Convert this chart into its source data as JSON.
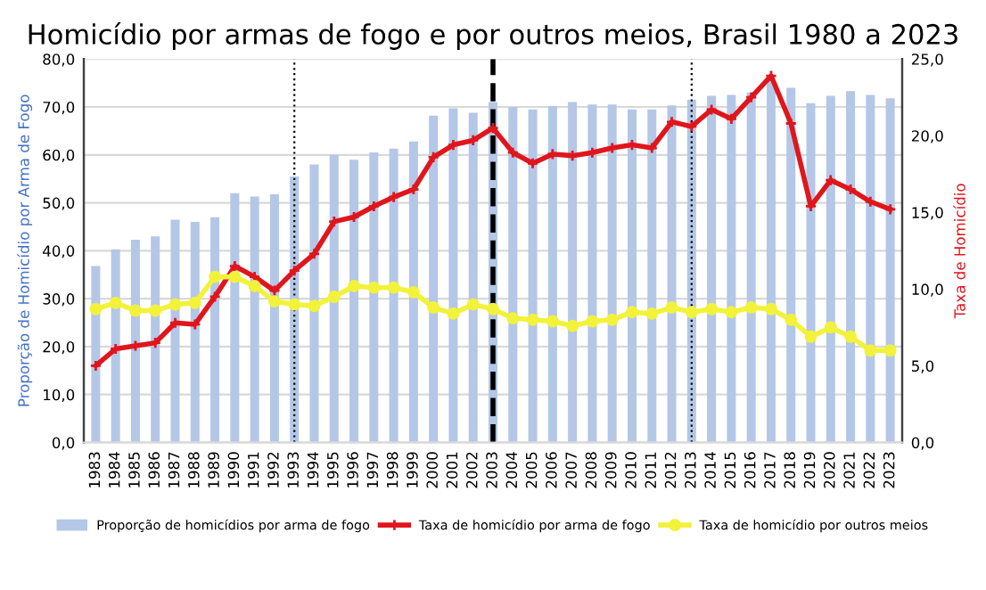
{
  "chart_data": {
    "type": "bar",
    "title": "Homicídio por armas de fogo e por outros meios, Brasil 1980 a 2023",
    "ylabel": "Proporção de Homicídio por Arma de Fogo",
    "y2label": "Taxa de Homicídio",
    "categories": [
      "1983",
      "1984",
      "1985",
      "1986",
      "1987",
      "1988",
      "1989",
      "1990",
      "1991",
      "1992",
      "1993",
      "1994",
      "1995",
      "1996",
      "1997",
      "1998",
      "1999",
      "2000",
      "2001",
      "2002",
      "2003",
      "2004",
      "2005",
      "2006",
      "2007",
      "2008",
      "2009",
      "2010",
      "2011",
      "2012",
      "2013",
      "2014",
      "2015",
      "2016",
      "2017",
      "2018",
      "2019",
      "2020",
      "2021",
      "2022",
      "2023"
    ],
    "series": [
      {
        "name": "Proporção de homicídios por arma de fogo",
        "color": "#b4c7e7",
        "values": [
          36.8,
          40.3,
          42.3,
          43.0,
          46.5,
          46.0,
          47.0,
          52.0,
          51.3,
          51.8,
          55.5,
          58.0,
          60.0,
          59.0,
          60.5,
          61.3,
          62.8,
          68.2,
          69.7,
          68.8,
          71.0,
          70.0,
          69.5,
          70.2,
          71.0,
          70.5,
          70.5,
          69.5,
          69.5,
          70.3,
          71.5,
          72.3,
          72.5,
          73.0,
          75.5,
          74.0,
          70.8,
          72.3,
          73.3,
          72.5,
          71.8
        ]
      },
      {
        "name": "Taxa de homicídio por arma de fogo",
        "type": "line",
        "axis": "y2",
        "color": "#e0161d",
        "marker": "cross",
        "values": [
          5.0,
          6.1,
          6.3,
          6.5,
          7.8,
          7.7,
          9.5,
          11.5,
          10.8,
          9.9,
          11.2,
          12.3,
          14.4,
          14.7,
          15.4,
          16.0,
          16.5,
          18.6,
          19.4,
          19.7,
          20.5,
          18.9,
          18.2,
          18.8,
          18.7,
          18.9,
          19.2,
          19.4,
          19.2,
          20.9,
          20.6,
          21.7,
          21.1,
          22.5,
          23.9,
          20.8,
          15.4,
          17.1,
          16.5,
          15.7,
          15.2
        ]
      },
      {
        "name": "Taxa de homicídio por outros meios",
        "type": "line",
        "axis": "y2",
        "color": "#f2f23a",
        "marker": "circle",
        "values": [
          8.7,
          9.1,
          8.6,
          8.6,
          9.0,
          9.1,
          10.8,
          10.8,
          10.2,
          9.2,
          9.0,
          8.9,
          9.5,
          10.2,
          10.1,
          10.1,
          9.8,
          8.8,
          8.4,
          9.0,
          8.7,
          8.1,
          8.0,
          7.9,
          7.6,
          7.9,
          8.0,
          8.5,
          8.4,
          8.8,
          8.5,
          8.7,
          8.5,
          8.8,
          8.7,
          8.0,
          6.9,
          7.5,
          6.9,
          6.0,
          6.0
        ]
      }
    ],
    "ylim": [
      0,
      80
    ],
    "yticks": [
      {
        "value": 0,
        "label": "0,0"
      },
      {
        "value": 10,
        "label": "10,0"
      },
      {
        "value": 20,
        "label": "20,0"
      },
      {
        "value": 30,
        "label": "30,0"
      },
      {
        "value": 40,
        "label": "40,0"
      },
      {
        "value": 50,
        "label": "50,0"
      },
      {
        "value": 60,
        "label": "60,0"
      },
      {
        "value": 70,
        "label": "70,0"
      },
      {
        "value": 80,
        "label": "80,0"
      }
    ],
    "y2lim": [
      0,
      25
    ],
    "y2ticks": [
      {
        "value": 0,
        "label": "0,0"
      },
      {
        "value": 5,
        "label": "5,0"
      },
      {
        "value": 10,
        "label": "10,0"
      },
      {
        "value": 15,
        "label": "15,0"
      },
      {
        "value": 20,
        "label": "20,0"
      },
      {
        "value": 25,
        "label": "25,0"
      }
    ],
    "ref_lines": [
      {
        "axis": "x",
        "value": "1993",
        "color": "#000000",
        "line_style": "dotted"
      },
      {
        "axis": "x",
        "value": "2003",
        "color": "#000000",
        "line_style": "dashed"
      },
      {
        "axis": "x",
        "value": "2013",
        "color": "#000000",
        "line_style": "dotted"
      }
    ],
    "grid": "y",
    "legend": "bottom"
  }
}
